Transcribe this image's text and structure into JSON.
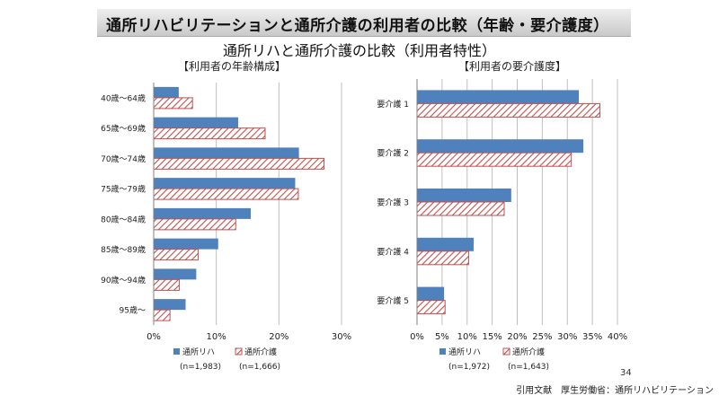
{
  "page": {
    "banner_title": "通所リハビリテーションと通所介護の利用者の比較（年齢・要介護度）",
    "subtitle": "通所リハと通所介護の比較（利用者特性）",
    "credit": "引用文献　厚生労働省：通所リハビリテーション",
    "page_number": "34"
  },
  "colors": {
    "series1": "#4f81bd",
    "series2": "#c0504d"
  },
  "chart_data": [
    {
      "type": "bar",
      "orientation": "horizontal",
      "title": "【利用者の年齢構成】",
      "categories": [
        "40歳～64歳",
        "65歳～69歳",
        "70歳～74歳",
        "75歳～79歳",
        "80歳～84歳",
        "85歳～89歳",
        "90歳～94歳",
        "95歳～"
      ],
      "series": [
        {
          "name": "通所リハ",
          "n": "(n=1,983)",
          "values": [
            4,
            13.5,
            23.2,
            22.6,
            15.5,
            10.3,
            6.8,
            5.1
          ]
        },
        {
          "name": "通所介護",
          "n": "(n=1,666)",
          "values": [
            6.2,
            17.8,
            27.2,
            23.1,
            13.1,
            7.1,
            4.1,
            2.6
          ]
        }
      ],
      "xlim": [
        0,
        30
      ],
      "xticks": [
        "0%",
        "10%",
        "20%",
        "30%"
      ],
      "grid": true,
      "legend": "bottom"
    },
    {
      "type": "bar",
      "orientation": "horizontal",
      "title": "【利用者の要介護度】",
      "categories": [
        "要介護 1",
        "要介護 2",
        "要介護 3",
        "要介護 4",
        "要介護 5"
      ],
      "series": [
        {
          "name": "通所リハ",
          "n": "(n=1,972)",
          "values": [
            32.3,
            33.2,
            18.8,
            11.3,
            5.4
          ]
        },
        {
          "name": "通所介護",
          "n": "(n=1,643)",
          "values": [
            36.5,
            30.8,
            17.4,
            10.3,
            5.6
          ]
        }
      ],
      "xlim": [
        0,
        40
      ],
      "xticks": [
        "0%",
        "5%",
        "10%",
        "15%",
        "20%",
        "25%",
        "30%",
        "35%",
        "40%"
      ],
      "grid": true,
      "legend": "bottom"
    }
  ]
}
